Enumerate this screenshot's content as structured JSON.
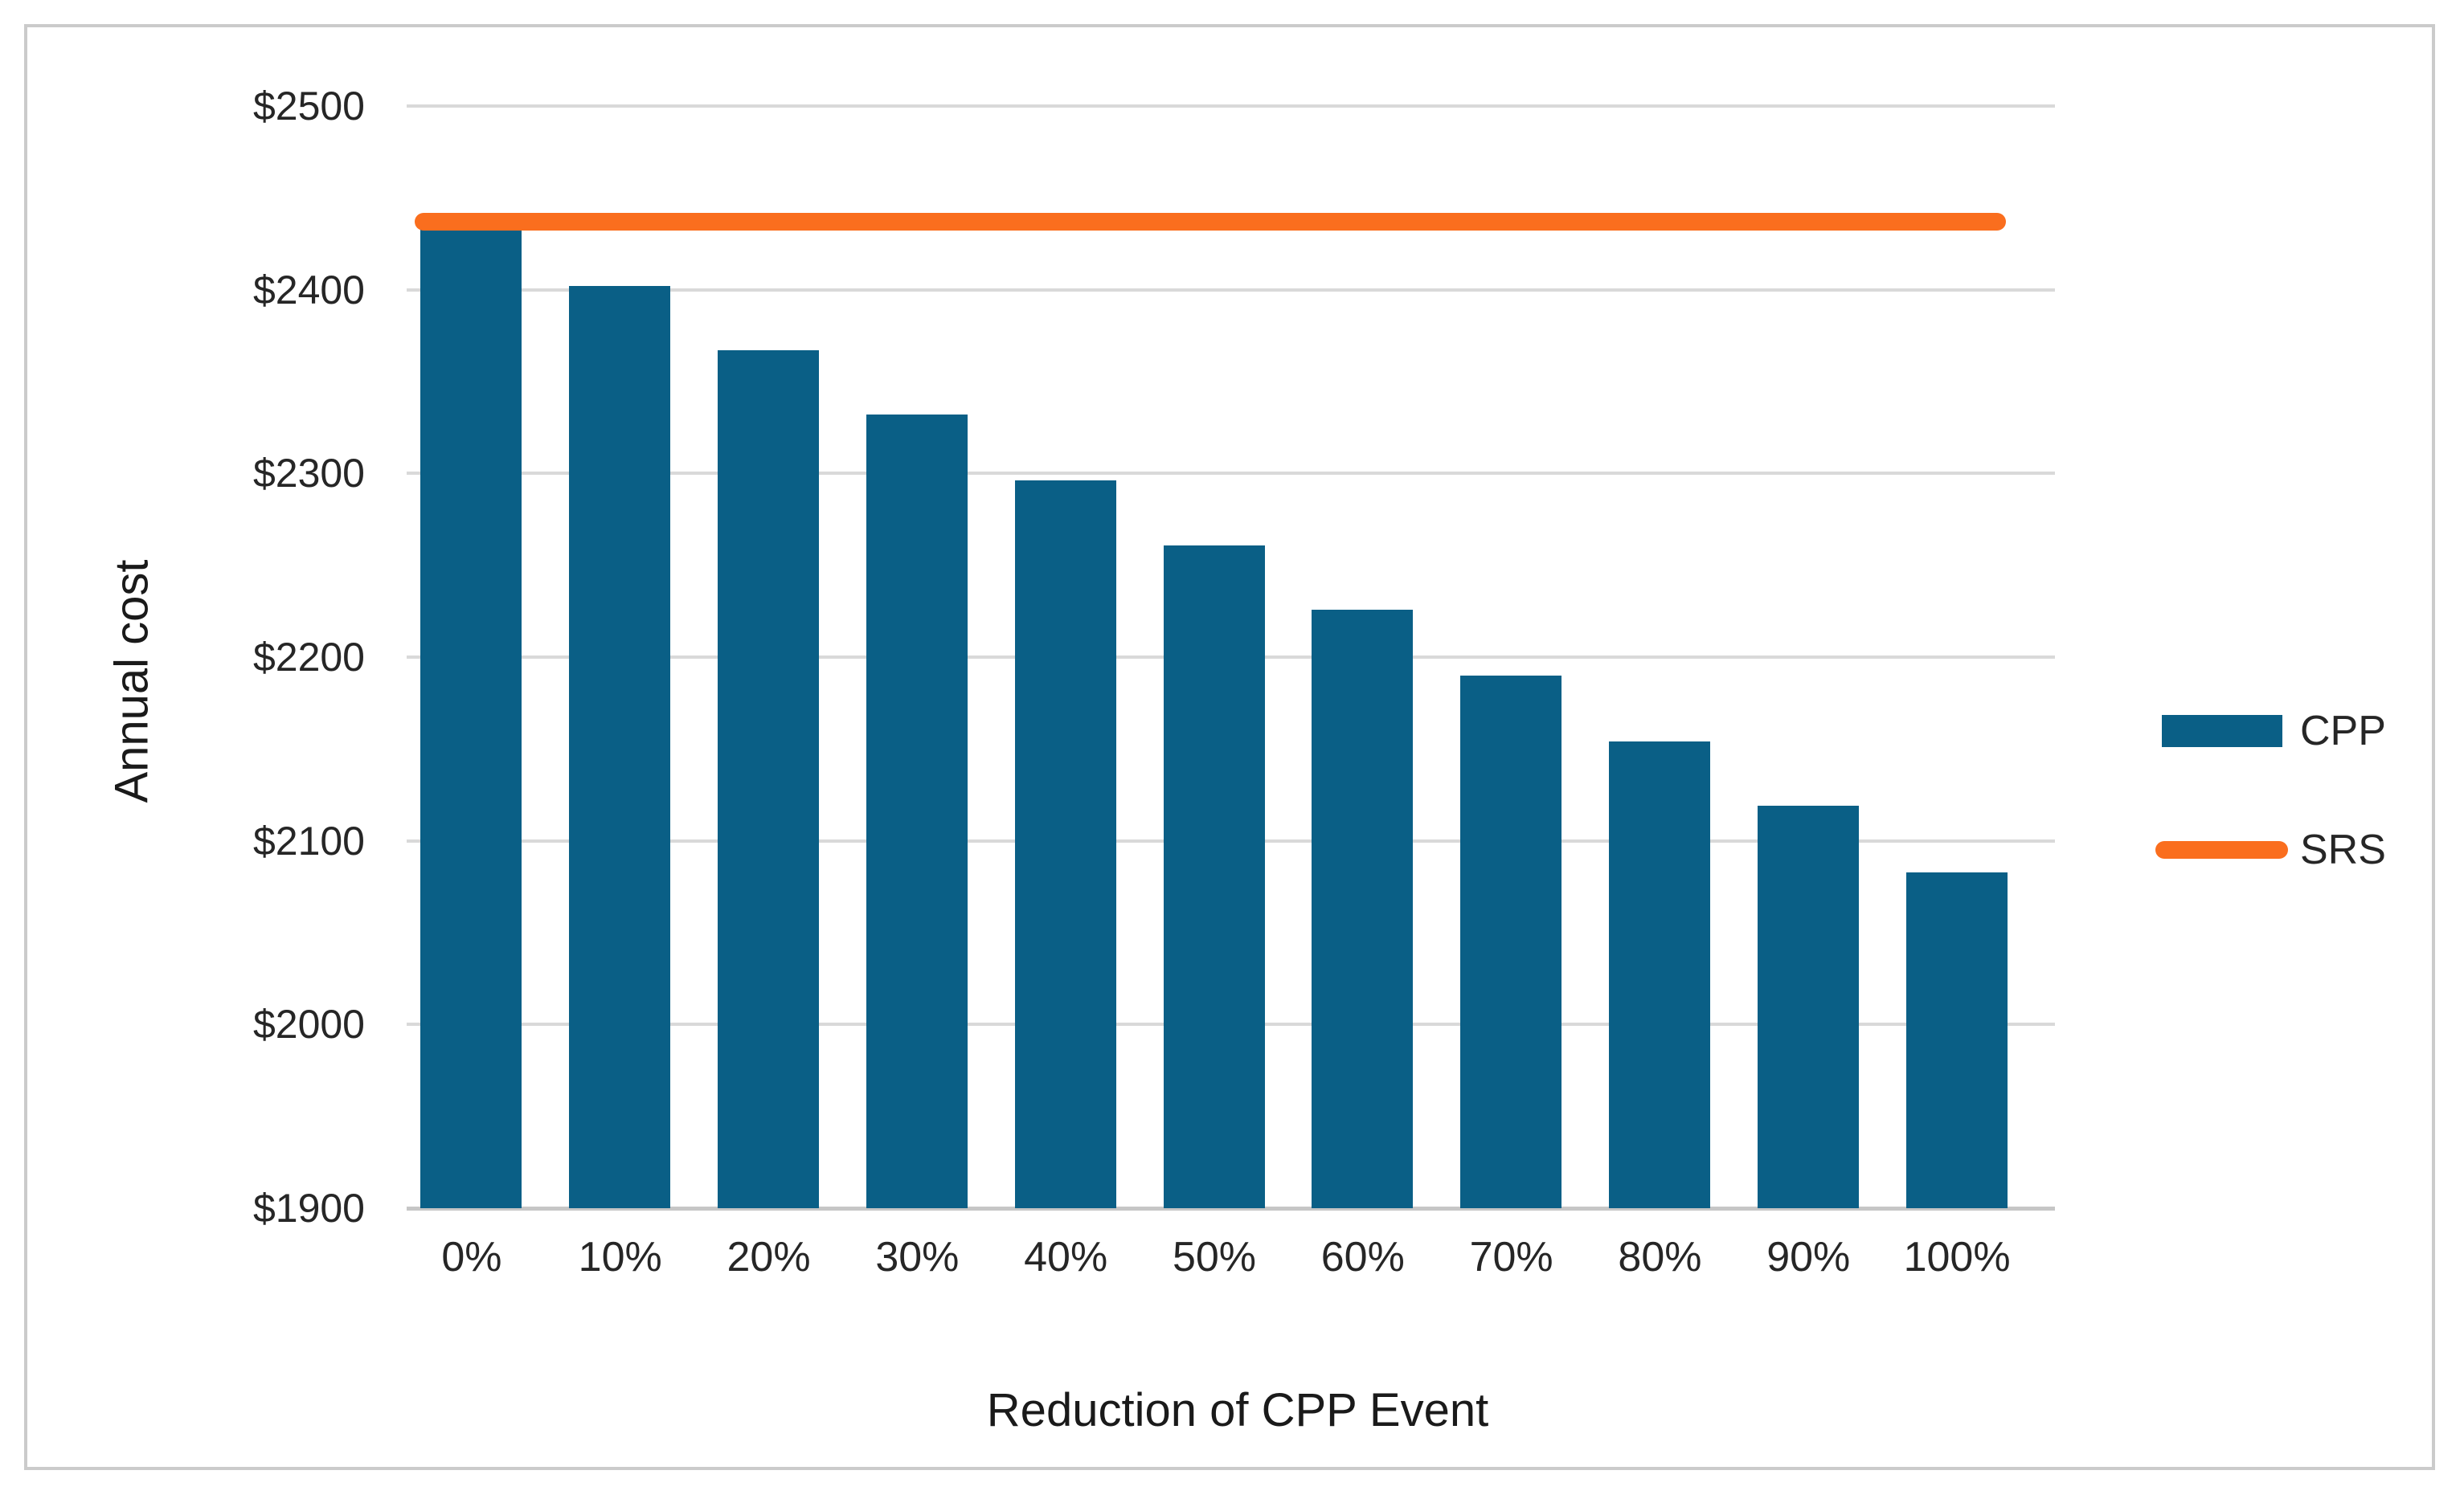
{
  "chart_data": {
    "type": "bar",
    "title": "",
    "xlabel": "Reduction of CPP Event",
    "ylabel": "Annual cost",
    "categories": [
      "0%",
      "10%",
      "20%",
      "30%",
      "40%",
      "50%",
      "60%",
      "70%",
      "80%",
      "90%",
      "100%"
    ],
    "series": [
      {
        "name": "CPP",
        "kind": "bar",
        "color": "#0a5f86",
        "values": [
          2436,
          2402,
          2367,
          2332,
          2296,
          2261,
          2226,
          2190,
          2154,
          2119,
          2083
        ]
      },
      {
        "name": "SRS",
        "kind": "line",
        "color": "#fa6e1e",
        "values": [
          2437,
          2437,
          2437,
          2437,
          2437,
          2437,
          2437,
          2437,
          2437,
          2437,
          2437
        ]
      }
    ],
    "ylim": [
      1900,
      2500
    ],
    "ytick_step": 100,
    "yticks": [
      {
        "value": 2500,
        "label": "$2500"
      },
      {
        "value": 2400,
        "label": "$2400"
      },
      {
        "value": 2300,
        "label": "$2300"
      },
      {
        "value": 2200,
        "label": "$2200"
      },
      {
        "value": 2100,
        "label": "$2100"
      },
      {
        "value": 2000,
        "label": "$2000"
      },
      {
        "value": 1900,
        "label": "$1900"
      }
    ],
    "grid": true,
    "legend_position": "right",
    "legend": [
      {
        "label": "CPP",
        "swatch": "bar",
        "color": "#0a5f86"
      },
      {
        "label": "SRS",
        "swatch": "line",
        "color": "#fa6e1e"
      }
    ]
  },
  "colors": {
    "background": "#ffffff",
    "frame_border": "#cbcbcb",
    "gridline": "#d9d9d9",
    "axis_line": "#c6c6c6",
    "text": "#262626"
  }
}
